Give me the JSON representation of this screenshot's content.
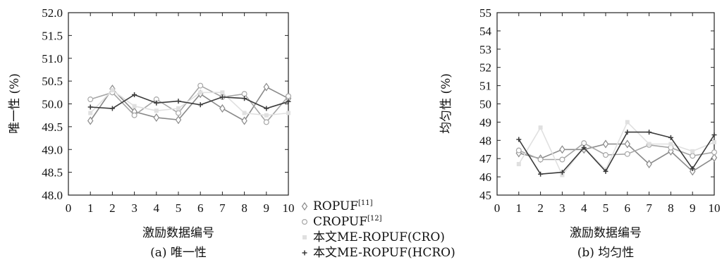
{
  "chart_data": [
    {
      "type": "line",
      "caption": "(a) 唯一性",
      "xlabel": "激励数据编号",
      "ylabel": "唯一性 (%)",
      "xlim": [
        0,
        10
      ],
      "ylim": [
        48.0,
        52.0
      ],
      "x_ticks": [
        "0",
        "1",
        "2",
        "3",
        "4",
        "5",
        "6",
        "7",
        "8",
        "9",
        "10"
      ],
      "y_ticks": [
        "48.0",
        "48.5",
        "49.0",
        "49.5",
        "50.0",
        "50.5",
        "51.0",
        "51.5",
        "52.0"
      ],
      "x": [
        1,
        2,
        3,
        4,
        5,
        6,
        7,
        8,
        9,
        10
      ],
      "series": [
        {
          "name": "ROPUF",
          "color": "#8a8a8a",
          "marker": "diamond",
          "values": [
            49.63,
            50.33,
            49.83,
            49.7,
            49.65,
            50.22,
            49.9,
            49.63,
            50.37,
            50.12
          ]
        },
        {
          "name": "CROPUF",
          "color": "#a6a6a6",
          "marker": "circle",
          "values": [
            50.1,
            50.25,
            49.75,
            50.1,
            49.8,
            50.4,
            50.15,
            50.22,
            49.6,
            50.17
          ]
        },
        {
          "name": "本文ME-ROPUF(CRO)",
          "color": "#e0e0e0",
          "marker": "square",
          "values": [
            49.8,
            50.3,
            49.95,
            49.85,
            49.9,
            50.25,
            50.25,
            49.8,
            49.75,
            49.8
          ]
        },
        {
          "name": "本文ME-ROPUF(HCRO)",
          "color": "#3a3a3a",
          "marker": "plus",
          "values": [
            49.93,
            49.9,
            50.2,
            50.02,
            50.06,
            49.98,
            50.15,
            50.12,
            49.9,
            50.05
          ]
        }
      ]
    },
    {
      "type": "line",
      "caption": "(b) 均匀性",
      "xlabel": "激励数据编号",
      "ylabel": "均匀性 (%)",
      "xlim": [
        0,
        10
      ],
      "ylim": [
        45,
        55
      ],
      "x_ticks": [
        "0",
        "1",
        "2",
        "3",
        "4",
        "5",
        "6",
        "7",
        "8",
        "9",
        "10"
      ],
      "y_ticks": [
        "45",
        "46",
        "47",
        "48",
        "49",
        "50",
        "51",
        "52",
        "53",
        "54",
        "55"
      ],
      "x": [
        1,
        2,
        3,
        4,
        5,
        6,
        7,
        8,
        9,
        10
      ],
      "series": [
        {
          "name": "ROPUF",
          "color": "#8a8a8a",
          "marker": "diamond",
          "values": [
            47.3,
            47.0,
            47.5,
            47.5,
            47.8,
            47.8,
            46.7,
            47.4,
            46.3,
            47.05
          ]
        },
        {
          "name": "CROPUF",
          "color": "#a6a6a6",
          "marker": "circle",
          "values": [
            47.45,
            46.95,
            46.95,
            47.85,
            47.2,
            47.25,
            47.75,
            47.6,
            47.15,
            47.35
          ]
        },
        {
          "name": "本文ME-ROPUF(CRO)",
          "color": "#e0e0e0",
          "marker": "square",
          "values": [
            46.7,
            48.7,
            46.1,
            47.6,
            46.4,
            49.0,
            47.8,
            47.8,
            47.4,
            47.9
          ]
        },
        {
          "name": "本文ME-ROPUF(HCRO)",
          "color": "#3a3a3a",
          "marker": "plus",
          "values": [
            48.05,
            46.15,
            46.25,
            47.6,
            46.3,
            48.45,
            48.45,
            48.15,
            46.45,
            48.3
          ]
        }
      ]
    }
  ],
  "legend": {
    "items": [
      {
        "label": "ROPUF",
        "sup": "[11]",
        "marker": "diamond",
        "color": "#8a8a8a"
      },
      {
        "label": "CROPUF",
        "sup": "[12]",
        "marker": "circle",
        "color": "#a6a6a6"
      },
      {
        "label": "本文ME-ROPUF(CRO)",
        "sup": "",
        "marker": "square",
        "color": "#e0e0e0"
      },
      {
        "label": "本文ME-ROPUF(HCRO)",
        "sup": "",
        "marker": "plus",
        "color": "#3a3a3a"
      }
    ]
  }
}
